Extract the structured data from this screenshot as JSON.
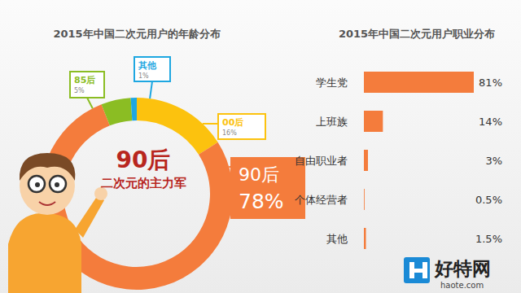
{
  "chart_data": [
    {
      "type": "pie",
      "title": "2015年中国二次元用户的年龄分布",
      "categories": [
        "00后",
        "90后",
        "85后",
        "其他"
      ],
      "values": [
        16,
        78,
        5,
        1
      ],
      "value_labels": [
        "16%",
        "78%",
        "5%",
        "1%"
      ],
      "colors": [
        "#fcc20e",
        "#f47c3c",
        "#8bbd23",
        "#1ea7e1"
      ],
      "annotations": [
        "90后",
        "二次元的主力军"
      ],
      "data_labels": true
    },
    {
      "type": "bar",
      "title": "2015年中国二次元用户职业分布",
      "categories": [
        "学生党",
        "上班族",
        "自由职业者",
        "个体经营者",
        "其他"
      ],
      "values": [
        81,
        14,
        3,
        0.5,
        1.5
      ],
      "value_labels": [
        "81%",
        "14%",
        "3%",
        "0.5%",
        "1.5%"
      ],
      "color": "#f47c3c",
      "orientation": "horizontal",
      "data_labels": true,
      "tick_labels": "y"
    }
  ],
  "watermark": {
    "name": "好特网",
    "url": "haote.com"
  }
}
